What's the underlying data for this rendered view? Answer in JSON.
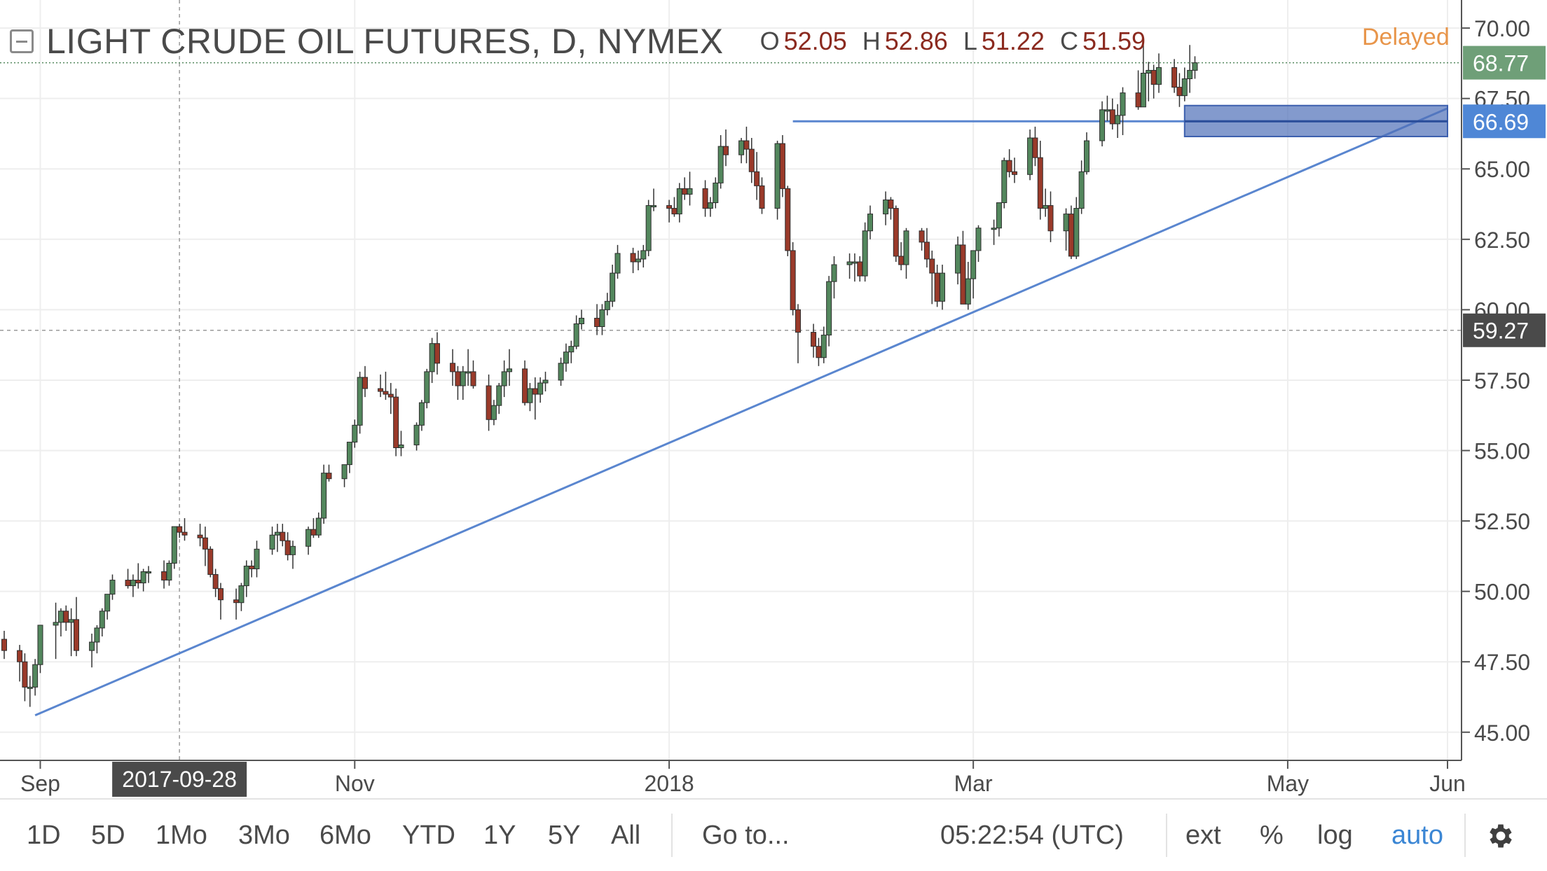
{
  "header": {
    "symbol_title": "LIGHT CRUDE OIL FUTURES, D, NYMEX",
    "ohlc": [
      {
        "key": "O",
        "value": "52.05"
      },
      {
        "key": "H",
        "value": "52.86"
      },
      {
        "key": "L",
        "value": "51.22"
      },
      {
        "key": "C",
        "value": "51.59"
      }
    ],
    "status": "Delayed"
  },
  "colors": {
    "up": "#53875d",
    "down": "#9a3a2a",
    "trendline": "#5a86cf",
    "zone_fill": "#4e6fb8",
    "grid": "#eeeeee",
    "axis": "#555555",
    "last_price_bg": "#6f9f78",
    "zone_label_bg": "#4f87d6",
    "crosshair_label_bg": "#4a4a4a",
    "status": "#e8954a",
    "active": "#3b86d4"
  },
  "toolbar": {
    "ranges": [
      "1D",
      "5D",
      "1Mo",
      "3Mo",
      "6Mo",
      "YTD",
      "1Y",
      "5Y",
      "All"
    ],
    "goto": "Go to...",
    "clock": "05:22:54 (UTC)",
    "options": [
      "ext",
      "%",
      "log",
      "auto"
    ],
    "active_option": "auto",
    "settings_icon": "gear-icon"
  },
  "chart_data": {
    "type": "candlestick",
    "title": "LIGHT CRUDE OIL FUTURES, D, NYMEX",
    "xlabel": "",
    "ylabel": "",
    "ylim": [
      44.0,
      70.5
    ],
    "y_ticks": [
      "45.00",
      "47.50",
      "50.00",
      "52.50",
      "55.00",
      "57.50",
      "60.00",
      "62.50",
      "65.00",
      "67.50",
      "70.00"
    ],
    "x_ticks": [
      "Sep",
      "Nov",
      "2018",
      "Mar",
      "May",
      "Jun"
    ],
    "x_tick_dates": [
      "2017-09-01",
      "2017-11-01",
      "2018-01-01",
      "2018-03-01",
      "2018-05-01",
      "2018-06-01"
    ],
    "x_start_date": "2017-08-25",
    "x_end_date": "2018-06-01",
    "crosshair": {
      "date_label": "2017-09-28",
      "price_label": "59.27",
      "date": "2017-09-28",
      "price": 59.27
    },
    "last_price": {
      "label": "68.77",
      "value": 68.77
    },
    "zone": {
      "label": "66.69",
      "value": 66.69,
      "low": 66.15,
      "high": 67.25,
      "from_date": "2018-04-11",
      "to_date": "2018-06-01"
    },
    "grid": true,
    "trendlines": [
      {
        "type": "rising",
        "from": [
          "2017-08-31",
          45.6
        ],
        "to": [
          "2018-06-01",
          67.15
        ]
      },
      {
        "type": "horizontal",
        "from": [
          "2018-01-25",
          66.69
        ],
        "to": [
          "2018-06-01",
          66.69
        ]
      }
    ],
    "candles": {
      "start": "2017-08-25",
      "o": [
        48.3,
        47.9,
        47.5,
        46.6,
        46.6,
        47.4,
        48.8,
        48.9,
        49.3,
        48.9,
        49.0,
        47.9,
        48.2,
        48.7,
        49.3,
        49.9,
        50.4,
        50.2,
        50.4,
        50.3,
        50.7,
        50.7,
        50.4,
        51.0,
        52.3,
        52.1,
        52.0,
        51.9,
        51.5,
        50.6,
        50.1,
        49.7,
        49.6,
        50.2,
        50.9,
        50.8,
        51.5,
        52.0,
        52.1,
        51.8,
        51.3,
        51.6,
        52.2,
        52.0,
        52.6,
        54.2,
        54.0,
        54.5,
        55.3,
        55.9,
        57.6,
        57.2,
        57.1,
        57.0,
        56.9,
        55.1,
        55.2,
        55.9,
        56.7,
        57.8,
        58.8,
        58.1,
        57.8,
        57.3,
        57.8,
        57.8,
        57.3,
        56.1,
        56.6,
        57.3,
        57.8,
        57.9,
        56.7,
        57.2,
        57.0,
        57.4,
        57.5,
        58.1,
        58.5,
        58.7,
        59.5,
        59.7,
        59.4,
        60.0,
        60.3,
        61.3,
        62.0,
        61.7,
        61.8,
        62.1,
        63.7,
        63.7,
        63.6,
        63.4,
        64.3,
        64.1,
        64.3,
        63.6,
        63.8,
        64.5,
        65.8,
        65.5,
        66.0,
        65.7,
        64.9,
        64.4,
        63.6,
        65.9,
        64.3,
        62.1,
        60.0,
        59.2,
        58.7,
        58.3,
        59.1,
        61.0,
        61.6,
        61.7,
        61.7,
        61.2,
        62.8,
        63.4,
        63.9,
        63.6,
        61.9,
        61.6,
        62.8,
        62.4,
        61.8,
        61.3,
        60.3,
        61.3,
        62.3,
        60.2,
        61.1,
        62.1,
        62.9,
        62.9,
        63.8,
        65.3,
        64.9,
        64.8,
        66.1,
        65.4,
        63.6,
        63.7,
        62.8,
        63.4,
        61.9,
        63.6,
        64.9,
        66.0,
        67.1,
        67.1,
        66.6,
        66.9,
        67.7,
        67.2,
        68.4,
        68.5,
        68.0,
        68.6,
        67.9,
        67.6,
        68.2,
        68.5
      ],
      "h": [
        48.6,
        48.1,
        47.8,
        47.0,
        47.6,
        48.1,
        49.6,
        49.4,
        49.5,
        49.4,
        49.8,
        48.5,
        48.8,
        49.4,
        49.9,
        50.6,
        50.8,
        50.6,
        51.0,
        50.8,
        50.9,
        51.1,
        51.1,
        52.2,
        52.4,
        52.6,
        52.4,
        52.3,
        51.6,
        50.8,
        50.3,
        50.1,
        50.3,
        51.1,
        51.1,
        51.8,
        52.3,
        52.4,
        52.4,
        52.1,
        51.8,
        52.3,
        52.6,
        52.8,
        54.5,
        54.5,
        54.5,
        55.3,
        56.1,
        57.8,
        58.0,
        57.7,
        57.8,
        57.4,
        57.2,
        55.7,
        56.0,
        56.8,
        57.9,
        59.0,
        59.2,
        58.6,
        58.0,
        58.0,
        58.6,
        58.2,
        57.7,
        56.8,
        57.4,
        58.2,
        58.6,
        58.2,
        57.4,
        57.6,
        57.6,
        57.8,
        58.3,
        58.8,
        58.9,
        59.8,
        60.0,
        60.2,
        60.2,
        60.6,
        61.6,
        62.3,
        62.2,
        62.1,
        62.3,
        63.9,
        64.3,
        63.9,
        64.0,
        64.5,
        64.7,
        64.9,
        64.6,
        64.0,
        64.7,
        66.2,
        66.4,
        66.1,
        66.5,
        66.1,
        65.6,
        64.7,
        66.0,
        66.2,
        64.4,
        62.4,
        60.2,
        59.5,
        59.0,
        59.4,
        61.2,
        61.9,
        62.0,
        62.0,
        61.9,
        63.1,
        63.7,
        64.2,
        64.0,
        63.7,
        62.4,
        62.9,
        62.9,
        62.9,
        62.1,
        61.6,
        61.6,
        62.6,
        62.8,
        61.7,
        62.1,
        63.0,
        63.2,
        63.3,
        65.4,
        65.7,
        65.4,
        66.4,
        66.5,
        66.0,
        64.3,
        64.2,
        63.6,
        63.7,
        64.0,
        65.3,
        66.3,
        67.4,
        67.6,
        67.5,
        67.3,
        67.9,
        68.5,
        69.5,
        68.8,
        68.7,
        69.1,
        68.9,
        68.4,
        68.6,
        69.4,
        69.0
      ],
      "l": [
        47.6,
        46.8,
        46.1,
        45.9,
        46.3,
        47.1,
        47.6,
        48.4,
        48.6,
        47.7,
        47.7,
        47.3,
        47.8,
        48.4,
        49.0,
        49.7,
        50.1,
        49.8,
        50.1,
        50.0,
        50.3,
        50.1,
        50.2,
        50.8,
        51.9,
        51.8,
        51.6,
        50.9,
        50.5,
        49.8,
        49.0,
        49.0,
        49.3,
        49.8,
        50.5,
        50.5,
        51.3,
        51.4,
        51.6,
        51.1,
        50.8,
        51.3,
        51.9,
        51.9,
        52.4,
        53.9,
        53.7,
        54.2,
        55.1,
        55.6,
        56.9,
        56.9,
        56.8,
        56.3,
        54.8,
        54.8,
        55.0,
        55.7,
        56.5,
        57.4,
        57.7,
        57.3,
        56.8,
        56.8,
        57.3,
        57.2,
        55.7,
        55.9,
        56.3,
        56.9,
        57.3,
        56.6,
        56.4,
        56.1,
        56.7,
        57.1,
        57.3,
        57.8,
        58.1,
        58.6,
        59.3,
        59.1,
        59.1,
        59.8,
        60.1,
        61.1,
        61.3,
        61.4,
        61.5,
        61.9,
        63.5,
        63.1,
        63.3,
        63.1,
        63.9,
        63.7,
        63.3,
        63.3,
        63.6,
        64.3,
        65.1,
        65.2,
        65.2,
        64.5,
        63.9,
        63.4,
        63.2,
        64.0,
        61.9,
        59.8,
        58.1,
        58.3,
        58.0,
        58.1,
        58.7,
        60.4,
        61.1,
        61.0,
        61.0,
        61.0,
        62.5,
        63.0,
        63.2,
        61.7,
        61.4,
        61.1,
        62.1,
        61.5,
        60.2,
        60.1,
        60.0,
        60.9,
        62.0,
        60.0,
        60.4,
        61.7,
        62.3,
        62.6,
        63.6,
        64.7,
        64.5,
        64.6,
        65.1,
        63.2,
        63.3,
        62.4,
        62.1,
        61.8,
        61.8,
        63.4,
        64.8,
        65.8,
        66.7,
        66.4,
        66.1,
        66.2,
        67.1,
        67.2,
        67.4,
        67.5,
        67.7,
        67.7,
        67.2,
        67.4,
        67.7,
        68.2
      ],
      "c": [
        47.9,
        47.5,
        46.6,
        46.6,
        47.4,
        48.8,
        48.9,
        49.3,
        48.9,
        49.0,
        47.9,
        48.2,
        48.7,
        49.3,
        49.9,
        50.4,
        50.2,
        50.4,
        50.3,
        50.7,
        50.7,
        50.4,
        51.0,
        52.3,
        52.1,
        52.0,
        51.9,
        51.5,
        50.6,
        50.1,
        49.7,
        49.6,
        50.2,
        50.9,
        50.8,
        51.5,
        52.0,
        52.1,
        51.8,
        51.3,
        51.6,
        52.2,
        52.0,
        52.6,
        54.2,
        54.0,
        54.5,
        55.3,
        55.9,
        57.6,
        57.2,
        57.1,
        57.0,
        56.9,
        55.1,
        55.2,
        55.9,
        56.7,
        57.8,
        58.8,
        58.1,
        57.8,
        57.3,
        57.8,
        57.8,
        57.3,
        56.1,
        56.6,
        57.3,
        57.8,
        57.9,
        56.7,
        57.2,
        57.0,
        57.4,
        57.5,
        58.1,
        58.5,
        58.7,
        59.5,
        59.7,
        59.4,
        60.0,
        60.3,
        61.3,
        62.0,
        61.7,
        61.8,
        62.1,
        63.7,
        63.7,
        63.6,
        63.4,
        64.3,
        64.1,
        64.3,
        63.6,
        63.8,
        64.5,
        65.8,
        65.5,
        66.0,
        65.7,
        64.9,
        64.4,
        63.6,
        65.9,
        64.3,
        62.1,
        60.0,
        59.2,
        58.7,
        58.3,
        59.1,
        61.0,
        61.6,
        61.7,
        61.7,
        61.2,
        62.8,
        63.4,
        63.9,
        63.6,
        61.9,
        61.6,
        62.8,
        62.4,
        61.8,
        61.3,
        60.3,
        61.3,
        62.3,
        60.2,
        61.1,
        62.1,
        62.9,
        62.9,
        63.8,
        65.3,
        64.9,
        64.8,
        66.1,
        65.4,
        63.6,
        63.7,
        62.8,
        63.4,
        61.9,
        63.6,
        64.9,
        66.0,
        67.1,
        67.1,
        66.6,
        66.9,
        67.7,
        67.2,
        68.4,
        68.5,
        68.0,
        68.6,
        67.9,
        67.6,
        68.2,
        68.5,
        68.77
      ]
    }
  }
}
